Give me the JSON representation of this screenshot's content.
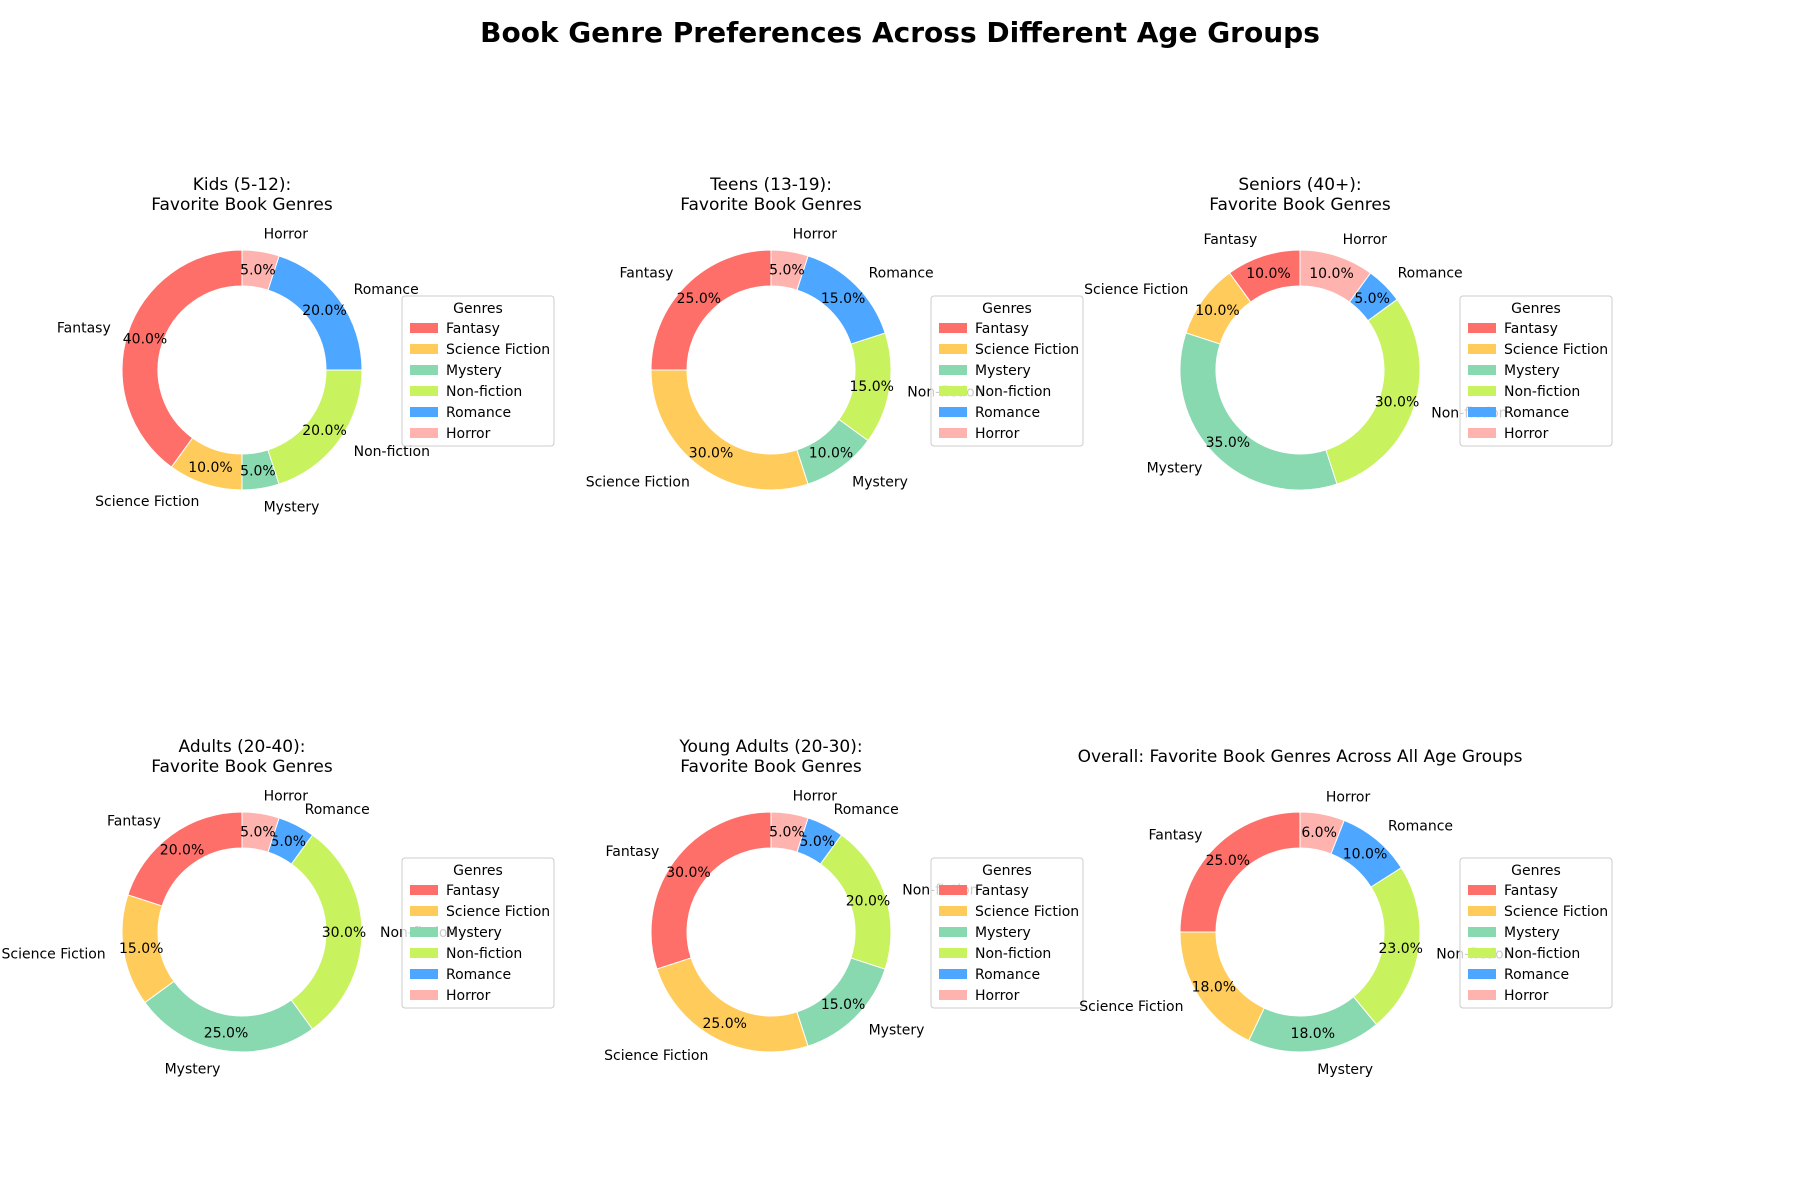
{
  "figure_title": "Book Genre Preferences Across Different Age Groups",
  "legend_title": "Genres",
  "genres": [
    "Fantasy",
    "Science Fiction",
    "Mystery",
    "Non-fiction",
    "Romance",
    "Horror"
  ],
  "colors": [
    "#ff6f69",
    "#ffcc5c",
    "#88d8b0",
    "#c9f25f",
    "#4da6ff",
    "#ffb3ae"
  ],
  "chart_data": [
    {
      "type": "pie",
      "title_lines": [
        "Kids (5-12):",
        "Favorite Book Genres"
      ],
      "categories": [
        "Fantasy",
        "Science Fiction",
        "Mystery",
        "Non-fiction",
        "Romance",
        "Horror"
      ],
      "values": [
        40,
        10,
        5,
        20,
        20,
        5
      ],
      "pct_labels": [
        "40.0%",
        "10.0%",
        "5.0%",
        "20.0%",
        "20.0%",
        "5.0%"
      ]
    },
    {
      "type": "pie",
      "title_lines": [
        "Teens (13-19):",
        "Favorite Book Genres"
      ],
      "categories": [
        "Fantasy",
        "Science Fiction",
        "Mystery",
        "Non-fiction",
        "Romance",
        "Horror"
      ],
      "values": [
        25,
        30,
        10,
        15,
        15,
        5
      ],
      "pct_labels": [
        "25.0%",
        "30.0%",
        "10.0%",
        "15.0%",
        "15.0%",
        "5.0%"
      ]
    },
    {
      "type": "pie",
      "title_lines": [
        "Seniors (40+):",
        "Favorite Book Genres"
      ],
      "categories": [
        "Fantasy",
        "Science Fiction",
        "Mystery",
        "Non-fiction",
        "Romance",
        "Horror"
      ],
      "values": [
        10,
        10,
        35,
        30,
        5,
        10
      ],
      "pct_labels": [
        "10.0%",
        "10.0%",
        "35.0%",
        "30.0%",
        "5.0%",
        "10.0%"
      ]
    },
    {
      "type": "pie",
      "title_lines": [
        "Adults (20-40):",
        "Favorite Book Genres"
      ],
      "categories": [
        "Fantasy",
        "Science Fiction",
        "Mystery",
        "Non-fiction",
        "Romance",
        "Horror"
      ],
      "values": [
        20,
        15,
        25,
        30,
        5,
        5
      ],
      "pct_labels": [
        "20.0%",
        "15.0%",
        "25.0%",
        "30.0%",
        "5.0%",
        "5.0%"
      ]
    },
    {
      "type": "pie",
      "title_lines": [
        "Young Adults (20-30):",
        "Favorite Book Genres"
      ],
      "categories": [
        "Fantasy",
        "Science Fiction",
        "Mystery",
        "Non-fiction",
        "Romance",
        "Horror"
      ],
      "values": [
        30,
        25,
        15,
        20,
        5,
        5
      ],
      "pct_labels": [
        "30.0%",
        "25.0%",
        "15.0%",
        "20.0%",
        "5.0%",
        "5.0%"
      ]
    },
    {
      "type": "pie",
      "title_lines": [
        "Overall: Favorite Book Genres Across All Age Groups"
      ],
      "categories": [
        "Fantasy",
        "Science Fiction",
        "Mystery",
        "Non-fiction",
        "Romance",
        "Horror"
      ],
      "values": [
        25,
        18,
        18,
        23,
        10,
        6
      ],
      "pct_labels": [
        "25.0%",
        "18.0%",
        "18.0%",
        "23.0%",
        "10.0%",
        "6.0%"
      ]
    }
  ]
}
